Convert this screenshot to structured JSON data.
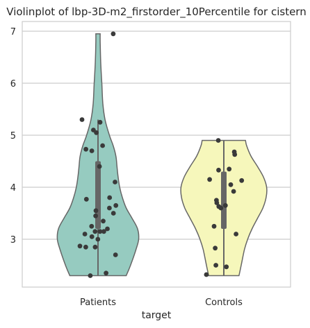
{
  "chart_data": {
    "type": "violin",
    "title": "Violinplot of lbp-3D-m2_firstorder_10Percentile for cistern",
    "xlabel": "target",
    "ylabel": "",
    "categories": [
      "Patients",
      "Controls"
    ],
    "yticks": [
      3,
      4,
      5,
      6,
      7
    ],
    "ylim": [
      2.1,
      7.2
    ],
    "grid": "horizontal",
    "colors": {
      "Patients": "#96cbc0",
      "Controls": "#f6f7bb",
      "outline": "#666666",
      "points": "#3a3a3a",
      "box": "#666666",
      "grid": "#cccccc",
      "frame": "#cccccc"
    },
    "series": [
      {
        "category": "Patients",
        "min": 2.3,
        "q1": 3.2,
        "median": 3.6,
        "q3": 4.5,
        "max": 6.95,
        "whisker_low": 2.3,
        "whisker_high": 5.3,
        "density": [
          [
            2.3,
            0.52
          ],
          [
            2.5,
            0.6
          ],
          [
            2.8,
            0.7
          ],
          [
            3.0,
            0.75
          ],
          [
            3.2,
            0.73
          ],
          [
            3.4,
            0.63
          ],
          [
            3.6,
            0.52
          ],
          [
            3.8,
            0.45
          ],
          [
            4.0,
            0.4
          ],
          [
            4.2,
            0.37
          ],
          [
            4.4,
            0.35
          ],
          [
            4.6,
            0.33
          ],
          [
            4.8,
            0.28
          ],
          [
            5.0,
            0.21
          ],
          [
            5.3,
            0.13
          ],
          [
            5.6,
            0.09
          ],
          [
            6.0,
            0.07
          ],
          [
            6.4,
            0.05
          ],
          [
            6.8,
            0.04
          ],
          [
            6.95,
            0.04
          ]
        ],
        "points": [
          6.95,
          5.3,
          5.25,
          5.1,
          5.05,
          4.8,
          4.73,
          4.7,
          4.4,
          4.1,
          3.8,
          3.77,
          3.65,
          3.6,
          3.55,
          3.5,
          3.45,
          3.35,
          3.25,
          3.2,
          3.15,
          3.15,
          3.15,
          3.1,
          3.05,
          3.0,
          2.87,
          2.85,
          2.85,
          2.7,
          2.35,
          2.3
        ]
      },
      {
        "category": "Controls",
        "min": 2.3,
        "q1": 3.2,
        "median": 3.65,
        "q3": 4.3,
        "max": 4.9,
        "whisker_low": 2.3,
        "whisker_high": 4.9,
        "density": [
          [
            2.3,
            0.28
          ],
          [
            2.5,
            0.32
          ],
          [
            2.8,
            0.38
          ],
          [
            3.0,
            0.44
          ],
          [
            3.2,
            0.52
          ],
          [
            3.4,
            0.62
          ],
          [
            3.6,
            0.72
          ],
          [
            3.8,
            0.78
          ],
          [
            4.0,
            0.79
          ],
          [
            4.2,
            0.73
          ],
          [
            4.4,
            0.62
          ],
          [
            4.6,
            0.5
          ],
          [
            4.8,
            0.42
          ],
          [
            4.9,
            0.4
          ]
        ],
        "points": [
          4.9,
          4.68,
          4.63,
          4.35,
          4.33,
          4.15,
          4.13,
          4.05,
          3.92,
          3.75,
          3.7,
          3.65,
          3.63,
          3.6,
          3.25,
          3.1,
          2.83,
          2.5,
          2.47,
          2.32
        ]
      }
    ]
  }
}
